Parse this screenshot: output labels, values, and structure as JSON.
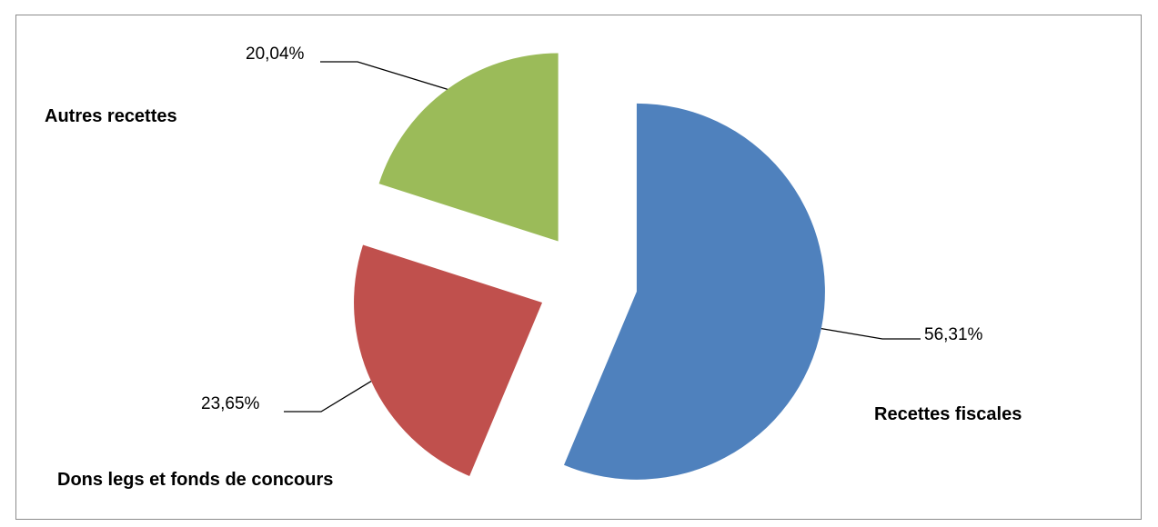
{
  "chart_data": {
    "type": "pie",
    "exploded": true,
    "title": "",
    "slices": [
      {
        "category": "Recettes fiscales",
        "value": 56.31,
        "label": "56,31%",
        "color": "#4F81BD"
      },
      {
        "category": "Dons legs et fonds de concours",
        "value": 23.65,
        "label": "23,65%",
        "color": "#C0504D"
      },
      {
        "category": "Autres recettes",
        "value": 20.04,
        "label": "20,04%",
        "color": "#9BBB59"
      }
    ]
  }
}
